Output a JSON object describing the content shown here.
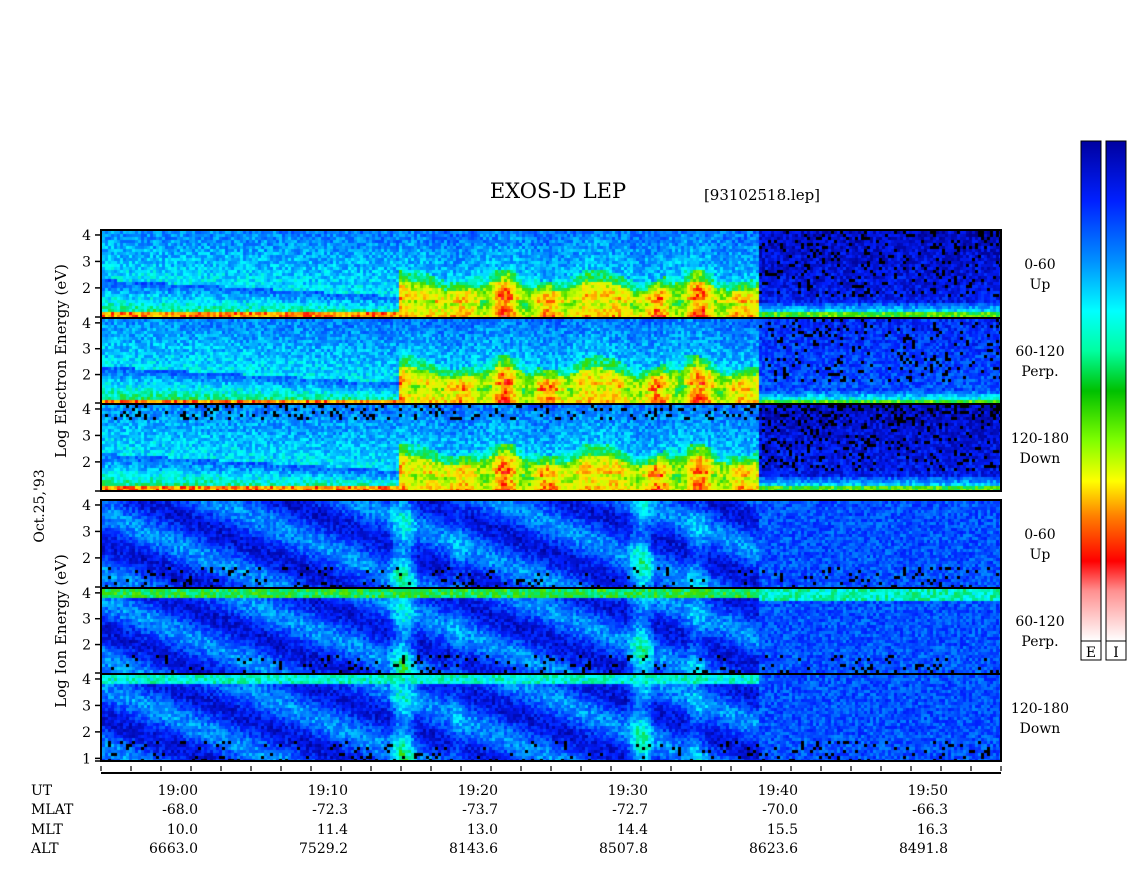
{
  "title": "EXOS-D LEP",
  "file_label": "[93102518.lep]",
  "date_label": "Oct.25,'93",
  "colorbar": {
    "electron_label": "E",
    "ion_label": "I"
  },
  "chart_data": {
    "type": "heatmap",
    "title": "EXOS-D LEP",
    "groups": [
      {
        "name": "Electron",
        "ylabel": "Log Electron Energy (eV)",
        "panels": [
          {
            "pitch": "0-60",
            "dir": "Up"
          },
          {
            "pitch": "60-120",
            "dir": "Perp."
          },
          {
            "pitch": "120-180",
            "dir": "Down"
          }
        ]
      },
      {
        "name": "Ion",
        "ylabel": "Log Ion Energy (eV)",
        "panels": [
          {
            "pitch": "0-60",
            "dir": "Up"
          },
          {
            "pitch": "60-120",
            "dir": "Perp."
          },
          {
            "pitch": "120-180",
            "dir": "Down"
          }
        ]
      }
    ],
    "y_ticks": [
      "4",
      "3",
      "2"
    ],
    "y_ticks_bottom": [
      "4",
      "3",
      "2",
      "1"
    ],
    "time_range": [
      "18:55",
      "19:55"
    ],
    "x_ticks": [
      "19:00",
      "19:10",
      "19:20",
      "19:30",
      "19:40",
      "19:50"
    ],
    "orbit_rows": [
      {
        "label": "UT",
        "values": [
          "19:00",
          "19:10",
          "19:20",
          "19:30",
          "19:40",
          "19:50"
        ]
      },
      {
        "label": "MLAT",
        "values": [
          "-68.0",
          "-72.3",
          "-73.7",
          "-72.7",
          "-70.0",
          "-66.3"
        ]
      },
      {
        "label": "MLT",
        "values": [
          "10.0",
          "11.4",
          "13.0",
          "14.4",
          "15.5",
          "16.3"
        ]
      },
      {
        "label": "ALT",
        "values": [
          "6663.0",
          "7529.2",
          "8143.6",
          "8507.8",
          "8623.6",
          "8491.8"
        ]
      }
    ]
  }
}
